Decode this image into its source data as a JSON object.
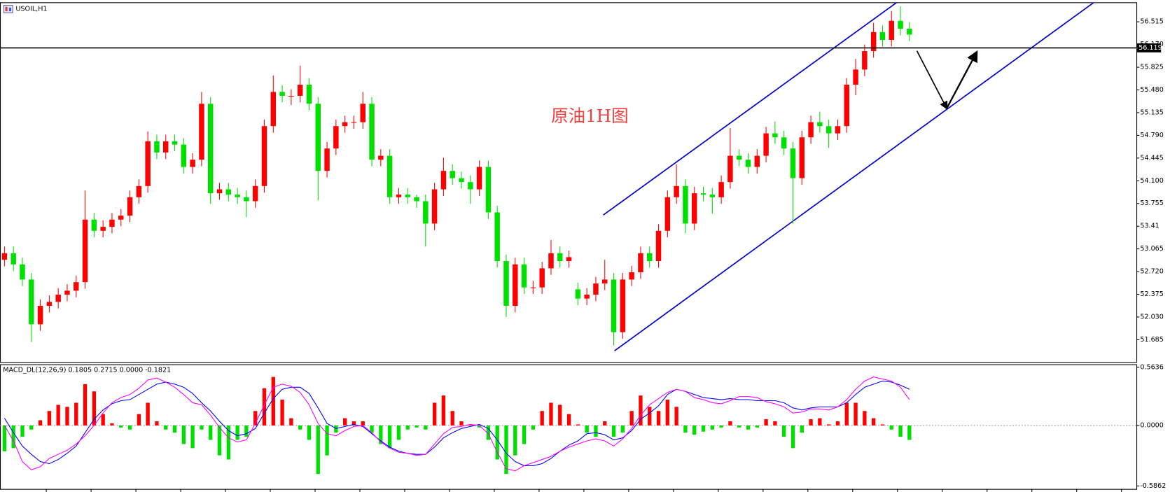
{
  "chart_data": [
    {
      "type": "candlestick",
      "title": "USOIL,H1",
      "annotation": "原油1H图",
      "up_color": "#ff0000",
      "down_color": "#00e000",
      "open": [
        52.9,
        53.0,
        52.83,
        52.6,
        51.92,
        52.2,
        52.26,
        52.37,
        52.43,
        52.56,
        53.51,
        53.34,
        53.4,
        53.51,
        53.57,
        53.85,
        54.02,
        54.7,
        54.53,
        54.7,
        54.65,
        54.31,
        54.42,
        55.27,
        53.91,
        53.97,
        53.89,
        53.85,
        53.79,
        54.02,
        54.93,
        55.45,
        55.39,
        55.39,
        55.56,
        55.27,
        54.25,
        54.59,
        54.93,
        54.99,
        54.99,
        55.27,
        54.42,
        54.48,
        53.85,
        53.89,
        53.85,
        53.79,
        53.45,
        53.97,
        54.25,
        54.14,
        54.08,
        53.97,
        54.31,
        53.62,
        52.88,
        52.2,
        52.83,
        52.48,
        52.48,
        52.77,
        53.0,
        52.88,
        52.45,
        52.31,
        52.37,
        52.54,
        52.6,
        51.8,
        52.6,
        52.71,
        53.0,
        52.88,
        53.34,
        53.85,
        54.02,
        53.45,
        53.91,
        53.89,
        53.85,
        54.08,
        54.48,
        54.42,
        54.31,
        54.48,
        54.82,
        54.76,
        54.59,
        54.14,
        54.76,
        54.99,
        54.93,
        54.82,
        54.93,
        55.56,
        55.79,
        56.07,
        56.36,
        56.24,
        56.53,
        56.41
      ],
      "high": [
        53.1,
        53.1,
        52.93,
        52.7,
        52.3,
        52.36,
        52.47,
        52.53,
        52.66,
        53.95,
        53.61,
        53.5,
        53.61,
        53.67,
        53.95,
        54.12,
        54.85,
        54.8,
        54.8,
        54.8,
        54.75,
        54.52,
        55.45,
        55.37,
        54.07,
        54.07,
        53.99,
        53.95,
        54.12,
        55.03,
        55.7,
        55.55,
        55.49,
        55.85,
        55.66,
        55.37,
        54.69,
        55.03,
        55.09,
        55.09,
        55.45,
        55.37,
        54.58,
        54.58,
        53.99,
        53.99,
        53.89,
        53.89,
        54.07,
        54.45,
        54.35,
        54.24,
        54.18,
        54.41,
        54.41,
        53.72,
        52.98,
        52.93,
        52.93,
        52.58,
        52.87,
        53.2,
        53.1,
        53.04,
        52.55,
        52.47,
        52.64,
        52.9,
        52.7,
        52.7,
        52.81,
        53.1,
        53.1,
        53.44,
        53.95,
        54.35,
        54.12,
        54.01,
        54.01,
        53.99,
        54.18,
        54.9,
        54.58,
        54.52,
        54.58,
        54.92,
        55.0,
        54.86,
        54.69,
        54.86,
        55.09,
        55.15,
        55.03,
        55.03,
        55.66,
        55.95,
        56.17,
        56.5,
        56.46,
        56.68,
        56.75,
        56.51
      ],
      "low": [
        52.8,
        52.73,
        52.5,
        51.65,
        51.82,
        52.1,
        52.16,
        52.27,
        52.33,
        52.46,
        53.24,
        53.24,
        53.3,
        53.41,
        53.47,
        53.75,
        53.92,
        54.43,
        54.43,
        54.55,
        54.21,
        54.21,
        54.32,
        53.75,
        53.81,
        53.79,
        53.75,
        53.55,
        53.69,
        53.92,
        54.83,
        55.29,
        55.25,
        55.29,
        55.17,
        53.8,
        54.15,
        54.49,
        54.83,
        54.89,
        54.89,
        54.32,
        54.32,
        53.75,
        53.75,
        53.75,
        53.69,
        53.1,
        53.35,
        53.87,
        54.04,
        53.98,
        53.75,
        53.87,
        53.52,
        52.78,
        52.03,
        52.1,
        52.38,
        52.38,
        52.38,
        52.67,
        52.78,
        52.78,
        52.21,
        52.21,
        52.27,
        52.44,
        51.6,
        51.7,
        52.5,
        52.61,
        52.78,
        52.78,
        53.24,
        53.75,
        53.3,
        53.35,
        53.79,
        53.6,
        53.75,
        53.98,
        54.32,
        54.21,
        54.21,
        54.38,
        54.66,
        54.49,
        53.45,
        54.04,
        54.66,
        54.83,
        54.6,
        54.72,
        54.83,
        55.4,
        55.69,
        55.97,
        56.14,
        56.14,
        56.31,
        56.22
      ],
      "close": [
        53.0,
        52.83,
        52.6,
        51.92,
        52.2,
        52.26,
        52.37,
        52.43,
        52.56,
        53.51,
        53.34,
        53.4,
        53.51,
        53.57,
        53.85,
        54.02,
        54.7,
        54.53,
        54.7,
        54.65,
        54.31,
        54.42,
        55.27,
        53.91,
        53.97,
        53.89,
        53.85,
        53.79,
        54.02,
        54.93,
        55.45,
        55.39,
        55.39,
        55.56,
        55.27,
        54.25,
        54.59,
        54.93,
        54.99,
        54.99,
        55.27,
        54.42,
        54.48,
        53.85,
        53.89,
        53.85,
        53.79,
        53.45,
        53.97,
        54.25,
        54.14,
        54.08,
        53.97,
        54.31,
        53.62,
        52.88,
        52.2,
        52.83,
        52.48,
        52.48,
        52.77,
        53.0,
        52.88,
        52.94,
        52.31,
        52.37,
        52.54,
        52.6,
        51.8,
        52.6,
        52.71,
        53.0,
        52.88,
        53.34,
        53.85,
        54.02,
        53.45,
        53.91,
        53.89,
        53.85,
        54.08,
        54.48,
        54.42,
        54.31,
        54.48,
        54.82,
        54.76,
        54.59,
        54.14,
        54.76,
        54.99,
        54.93,
        54.82,
        54.93,
        55.56,
        55.79,
        56.07,
        56.36,
        56.24,
        56.53,
        56.41,
        56.32
      ],
      "price_line": 56.119,
      "ylim": [
        51.346,
        56.811
      ],
      "yticks": [
        56.515,
        {
          "value": 56.17,
          "label": "56.170"
        },
        55.825,
        {
          "value": 55.48,
          "label": "55.480"
        },
        55.135,
        {
          "value": 54.79,
          "label": "54.790"
        },
        54.445,
        {
          "value": 54.1,
          "label": "54.100"
        },
        53.755,
        53.41,
        53.065,
        {
          "value": 52.72,
          "label": "52.720"
        },
        52.375,
        {
          "value": 52.03,
          "label": "52.030"
        },
        51.685
      ]
    },
    {
      "type": "macd",
      "title": "MACD_DL(12,26,9) 0.1805 0.2715 0.0000 -0.1821",
      "histogram": {
        "up_color": "#ff0000",
        "down_color": "#00e000",
        "values": [
          -0.25,
          -0.22,
          -0.11,
          -0.04,
          0.05,
          0.14,
          0.2,
          0.18,
          0.22,
          0.4,
          0.33,
          0.11,
          0.02,
          -0.02,
          -0.04,
          0.11,
          0.22,
          0.04,
          -0.04,
          -0.07,
          -0.18,
          -0.22,
          -0.04,
          -0.14,
          -0.29,
          -0.33,
          -0.14,
          -0.11,
          0.14,
          0.36,
          0.47,
          0.25,
          0.07,
          -0.04,
          -0.14,
          -0.47,
          -0.29,
          -0.07,
          0.07,
          0.04,
          0.04,
          -0.07,
          -0.18,
          -0.22,
          -0.14,
          -0.04,
          -0.02,
          -0.04,
          0.22,
          0.29,
          0.14,
          0.04,
          0.01,
          -0.02,
          -0.14,
          -0.33,
          -0.47,
          -0.29,
          -0.18,
          -0.04,
          0.14,
          0.22,
          0.2,
          0.11,
          0.01,
          -0.07,
          -0.11,
          0.04,
          -0.11,
          -0.07,
          0.14,
          0.29,
          0.18,
          0.14,
          0.25,
          0.18,
          -0.07,
          -0.09,
          -0.06,
          -0.04,
          -0.02,
          0.04,
          -0.02,
          -0.04,
          -0.02,
          0.06,
          0.04,
          -0.11,
          -0.22,
          -0.07,
          0.06,
          0.07,
          0.01,
          0.04,
          0.22,
          0.22,
          0.14,
          0.07,
          0.01,
          -0.04,
          -0.11,
          -0.14
        ]
      },
      "macd": {
        "color": "#0000ff",
        "values": [
          0.07,
          -0.07,
          -0.2,
          -0.28,
          -0.35,
          -0.37,
          -0.33,
          -0.27,
          -0.2,
          -0.07,
          0.06,
          0.15,
          0.21,
          0.24,
          0.25,
          0.3,
          0.35,
          0.4,
          0.42,
          0.4,
          0.37,
          0.31,
          0.22,
          0.14,
          0.04,
          -0.05,
          -0.1,
          -0.08,
          -0.03,
          0.12,
          0.26,
          0.35,
          0.37,
          0.37,
          0.31,
          0.17,
          0.02,
          -0.03,
          -0.01,
          0.01,
          -0.01,
          -0.08,
          -0.15,
          -0.21,
          -0.25,
          -0.27,
          -0.28,
          -0.28,
          -0.21,
          -0.12,
          -0.07,
          -0.03,
          -0.01,
          0.01,
          -0.03,
          -0.14,
          -0.27,
          -0.35,
          -0.39,
          -0.39,
          -0.37,
          -0.32,
          -0.25,
          -0.19,
          -0.15,
          -0.08,
          -0.07,
          -0.09,
          -0.14,
          -0.12,
          -0.05,
          0.06,
          0.12,
          0.19,
          0.3,
          0.35,
          0.33,
          0.3,
          0.27,
          0.26,
          0.25,
          0.26,
          0.25,
          0.25,
          0.24,
          0.24,
          0.24,
          0.22,
          0.17,
          0.15,
          0.17,
          0.18,
          0.18,
          0.18,
          0.22,
          0.3,
          0.37,
          0.4,
          0.43,
          0.42,
          0.39,
          0.35
        ]
      },
      "signal": {
        "color": "#ff00ff",
        "values": [
          0.0,
          -0.15,
          -0.35,
          -0.43,
          -0.4,
          -0.32,
          -0.28,
          -0.24,
          -0.18,
          -0.1,
          0.0,
          0.12,
          0.22,
          0.27,
          0.3,
          0.36,
          0.44,
          0.46,
          0.42,
          0.37,
          0.3,
          0.22,
          0.2,
          0.1,
          -0.02,
          -0.12,
          -0.16,
          -0.14,
          0.02,
          0.2,
          0.37,
          0.4,
          0.38,
          0.32,
          0.2,
          0.02,
          -0.08,
          -0.1,
          -0.05,
          -0.01,
          0.0,
          -0.07,
          -0.16,
          -0.22,
          -0.26,
          -0.27,
          -0.29,
          -0.28,
          -0.18,
          -0.08,
          -0.02,
          -0.01,
          0.01,
          0.0,
          -0.08,
          -0.26,
          -0.42,
          -0.44,
          -0.39,
          -0.36,
          -0.33,
          -0.3,
          -0.25,
          -0.21,
          -0.18,
          -0.15,
          -0.13,
          -0.15,
          -0.2,
          -0.13,
          -0.03,
          0.1,
          0.2,
          0.26,
          0.32,
          0.35,
          0.33,
          0.27,
          0.25,
          0.22,
          0.21,
          0.24,
          0.28,
          0.28,
          0.27,
          0.23,
          0.21,
          0.18,
          0.12,
          0.13,
          0.16,
          0.16,
          0.15,
          0.18,
          0.25,
          0.35,
          0.43,
          0.47,
          0.45,
          0.43,
          0.37,
          0.25
        ]
      },
      "ylim": [
        -0.6151,
        0.5925
      ],
      "yticks": [
        0.5636,
        {
          "value": 0,
          "label": "0.0000"
        },
        -0.5862
      ]
    }
  ]
}
